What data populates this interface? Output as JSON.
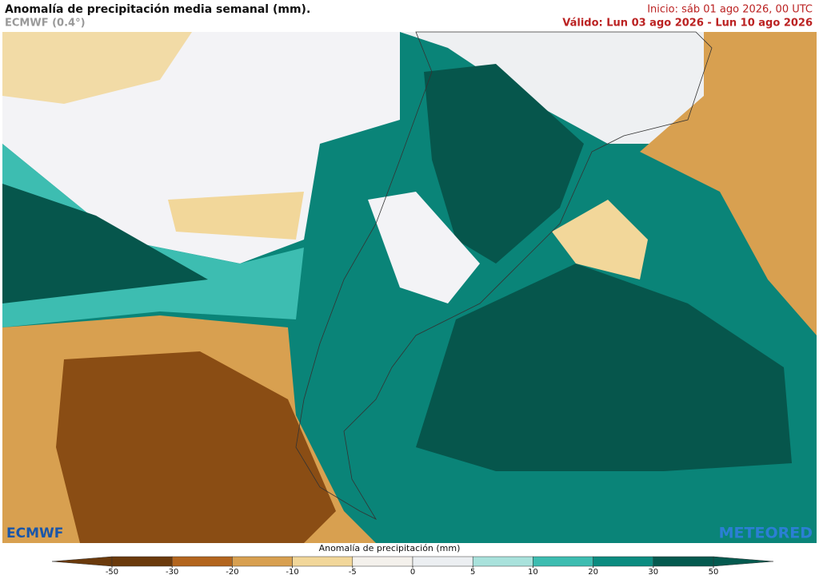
{
  "header": {
    "title": "Anomalía de precipitación media semanal (mm).",
    "model": "ECMWF (0.4°)",
    "start": "Inicio:  sáb 01 ago 2026, 00 UTC",
    "valid": "Válido: Lun 03 ago 2026 - Lun 10 ago 2026"
  },
  "logos": {
    "left": "ECMWF",
    "right": "METEORED"
  },
  "colorbar": {
    "label": "Anomalía de precipitación (mm)",
    "ticks": [
      -50,
      -30,
      -20,
      -10,
      -5,
      0,
      5,
      10,
      20,
      30,
      50
    ],
    "colors": [
      "#6b3a0c",
      "#b3651e",
      "#d8a050",
      "#f2d79a",
      "#f4f1ec",
      "#eceff2",
      "#a9e2dc",
      "#3dbdb1",
      "#0b8c80",
      "#045a4f"
    ]
  }
}
